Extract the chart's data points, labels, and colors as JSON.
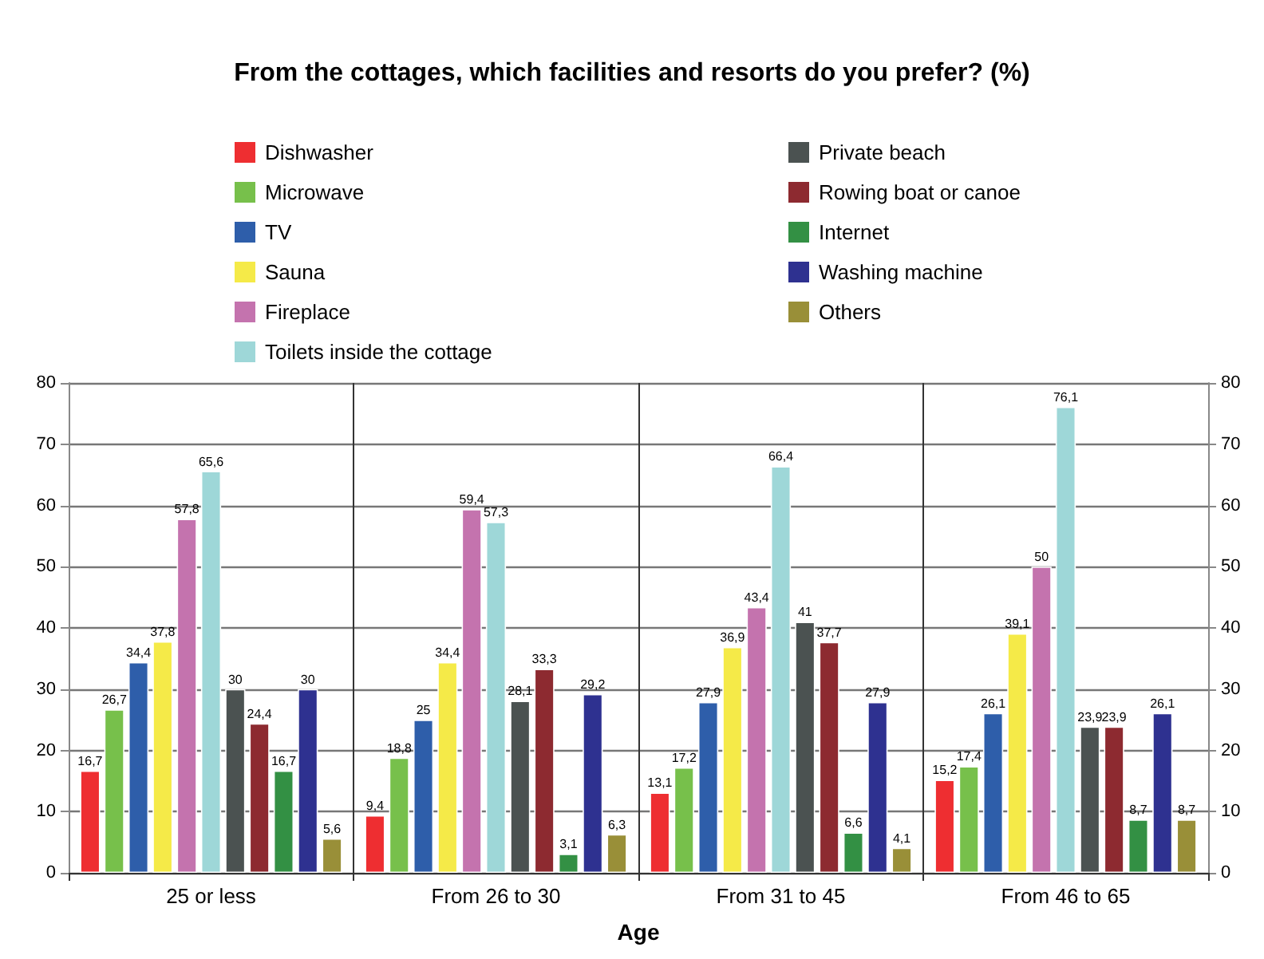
{
  "chart_data": {
    "type": "bar",
    "title": "From the cottages, which facilities and resorts do you prefer? (%)",
    "xlabel": "Age",
    "categories": [
      "25 or less",
      "From 26 to 30",
      "From 31 to 45",
      "From 46 to 65"
    ],
    "series": [
      {
        "name": "Dishwasher",
        "color": "#ee2e31",
        "values": [
          16.7,
          9.4,
          13.1,
          15.2
        ],
        "value_labels": [
          "16,7",
          "9,4",
          "13,1",
          "15,2"
        ]
      },
      {
        "name": "Microwave",
        "color": "#77c04b",
        "values": [
          26.7,
          18.8,
          17.2,
          17.4
        ],
        "value_labels": [
          "26,7",
          "18,8",
          "17,2",
          "17,4"
        ]
      },
      {
        "name": "TV",
        "color": "#2e5eaa",
        "values": [
          34.4,
          25,
          27.9,
          26.1
        ],
        "value_labels": [
          "34,4",
          "25",
          "27,9",
          "26,1"
        ]
      },
      {
        "name": "Sauna",
        "color": "#f5ea48",
        "values": [
          37.8,
          34.4,
          36.9,
          39.1
        ],
        "value_labels": [
          "37,8",
          "34,4",
          "36,9",
          "39,1"
        ]
      },
      {
        "name": "Fireplace",
        "color": "#c473ae",
        "values": [
          57.8,
          59.4,
          43.4,
          50
        ],
        "value_labels": [
          "57,8",
          "59,4",
          "43,4",
          "50"
        ]
      },
      {
        "name": "Toilets inside the cottage",
        "color": "#9ed7d8",
        "values": [
          65.6,
          57.3,
          66.4,
          76.1
        ],
        "value_labels": [
          "65,6",
          "57,3",
          "66,4",
          "76,1"
        ]
      },
      {
        "name": "Private beach",
        "color": "#4b5251",
        "values": [
          30,
          28.1,
          41,
          23.9
        ],
        "value_labels": [
          "30",
          "28,1",
          "41",
          "23,9"
        ]
      },
      {
        "name": "Rowing boat or canoe",
        "color": "#8d2a30",
        "values": [
          24.4,
          33.3,
          37.7,
          23.9
        ],
        "value_labels": [
          "24,4",
          "33,3",
          "37,7",
          "23,9"
        ]
      },
      {
        "name": "Internet",
        "color": "#339044",
        "values": [
          16.7,
          3.1,
          6.6,
          8.7
        ],
        "value_labels": [
          "16,7",
          "3,1",
          "6,6",
          "8,7"
        ]
      },
      {
        "name": "Washing machine",
        "color": "#2e3190",
        "values": [
          30,
          29.2,
          27.9,
          26.1
        ],
        "value_labels": [
          "30",
          "29,2",
          "27,9",
          "26,1"
        ]
      },
      {
        "name": "Others",
        "color": "#998f38",
        "values": [
          5.6,
          6.3,
          4.1,
          8.7
        ],
        "value_labels": [
          "5,6",
          "6,3",
          "4,1",
          "8,7"
        ]
      }
    ],
    "ylim": [
      0,
      80
    ],
    "yticks": [
      0,
      10,
      20,
      30,
      40,
      50,
      60,
      70,
      80
    ],
    "y2lim": [
      0,
      80
    ],
    "y2ticks": [
      0,
      10,
      20,
      30,
      40,
      50,
      60,
      70,
      80
    ],
    "grid": true,
    "legend": "top"
  }
}
